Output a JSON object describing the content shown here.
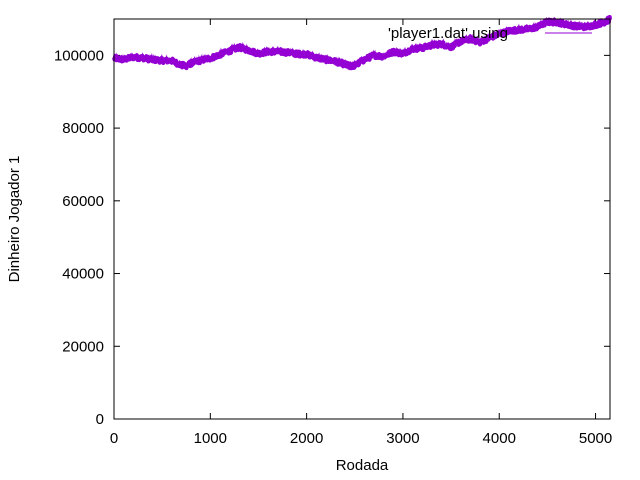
{
  "chart_data": {
    "type": "line",
    "title": "",
    "xlabel": "Rodada",
    "ylabel": "Dinheiro Jogador 1",
    "xlim": [
      0,
      5150
    ],
    "ylim": [
      0,
      110000
    ],
    "xticks": [
      0,
      1000,
      2000,
      3000,
      4000,
      5000
    ],
    "yticks": [
      0,
      20000,
      40000,
      60000,
      80000,
      100000
    ],
    "grid": false,
    "legend": "top-right",
    "series": [
      {
        "name": "'player1.dat' using",
        "color": "#9400d3",
        "x": [
          0,
          100,
          200,
          300,
          400,
          500,
          600,
          700,
          750,
          800,
          900,
          1000,
          1100,
          1200,
          1300,
          1400,
          1500,
          1600,
          1700,
          1800,
          1900,
          2000,
          2100,
          2200,
          2300,
          2400,
          2450,
          2500,
          2600,
          2700,
          2800,
          2900,
          3000,
          3100,
          3200,
          3300,
          3400,
          3500,
          3600,
          3700,
          3800,
          3900,
          4000,
          4100,
          4200,
          4300,
          4400,
          4500,
          4600,
          4700,
          4800,
          4900,
          5000,
          5100,
          5150
        ],
        "y": [
          99200,
          98800,
          99500,
          99300,
          98800,
          98600,
          98500,
          97300,
          97100,
          97800,
          98600,
          99200,
          100200,
          101200,
          102200,
          101400,
          100500,
          101000,
          101000,
          100800,
          100400,
          100300,
          99400,
          98800,
          98300,
          97500,
          97000,
          97200,
          98800,
          100000,
          99700,
          101000,
          100500,
          101800,
          102000,
          102800,
          103100,
          102300,
          103800,
          104500,
          103600,
          104800,
          105800,
          106700,
          107000,
          107200,
          107800,
          109200,
          109100,
          108500,
          108000,
          107800,
          108400,
          109200,
          110000
        ]
      }
    ]
  }
}
